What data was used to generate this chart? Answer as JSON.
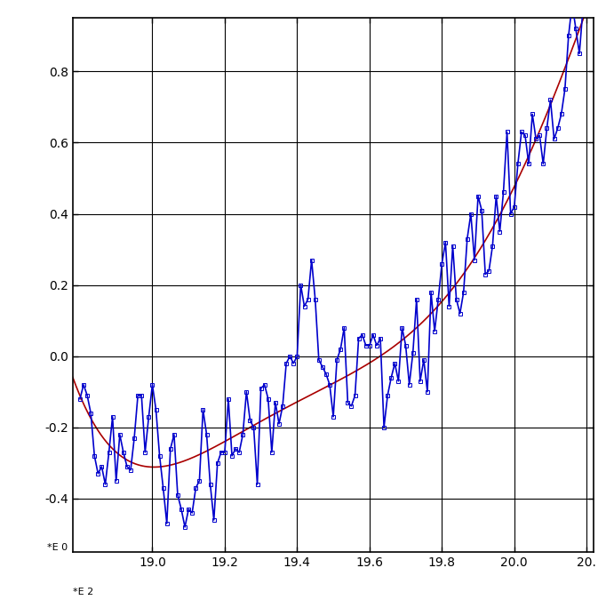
{
  "xlim_years": [
    1878,
    2022
  ],
  "ylim": [
    -0.55,
    0.95
  ],
  "yticks": [
    -0.4,
    -0.2,
    0.0,
    0.2,
    0.4,
    0.6,
    0.8
  ],
  "xtick_years": [
    1900,
    1920,
    1940,
    1960,
    1980,
    2000,
    2020
  ],
  "xtick_labels": [
    "19.0",
    "19.2",
    "19.4",
    "19.6",
    "19.8",
    "20.0",
    "20."
  ],
  "first_xlabel": "*E 2",
  "ylabel_note": "*E 0",
  "line_color": "#0000CC",
  "marker": "s",
  "marker_size": 3.5,
  "fit_color": "#AA0000",
  "fit_linewidth": 1.2,
  "data_linewidth": 1.2,
  "background_color": "#FFFFFF",
  "grid_color": "#000000",
  "poly_degree": 5,
  "years": [
    1880,
    1881,
    1882,
    1883,
    1884,
    1885,
    1886,
    1887,
    1888,
    1889,
    1890,
    1891,
    1892,
    1893,
    1894,
    1895,
    1896,
    1897,
    1898,
    1899,
    1900,
    1901,
    1902,
    1903,
    1904,
    1905,
    1906,
    1907,
    1908,
    1909,
    1910,
    1911,
    1912,
    1913,
    1914,
    1915,
    1916,
    1917,
    1918,
    1919,
    1920,
    1921,
    1922,
    1923,
    1924,
    1925,
    1926,
    1927,
    1928,
    1929,
    1930,
    1931,
    1932,
    1933,
    1934,
    1935,
    1936,
    1937,
    1938,
    1939,
    1940,
    1941,
    1942,
    1943,
    1944,
    1945,
    1946,
    1947,
    1948,
    1949,
    1950,
    1951,
    1952,
    1953,
    1954,
    1955,
    1956,
    1957,
    1958,
    1959,
    1960,
    1961,
    1962,
    1963,
    1964,
    1965,
    1966,
    1967,
    1968,
    1969,
    1970,
    1971,
    1972,
    1973,
    1974,
    1975,
    1976,
    1977,
    1978,
    1979,
    1980,
    1981,
    1982,
    1983,
    1984,
    1985,
    1986,
    1987,
    1988,
    1989,
    1990,
    1991,
    1992,
    1993,
    1994,
    1995,
    1996,
    1997,
    1998,
    1999,
    2000,
    2001,
    2002,
    2003,
    2004,
    2005,
    2006,
    2007,
    2008,
    2009,
    2010,
    2011,
    2012,
    2013,
    2014,
    2015,
    2016,
    2017,
    2018,
    2019,
    2020
  ],
  "anomalies": [
    -0.12,
    -0.08,
    -0.11,
    -0.16,
    -0.28,
    -0.33,
    -0.31,
    -0.36,
    -0.27,
    -0.17,
    -0.35,
    -0.22,
    -0.27,
    -0.31,
    -0.32,
    -0.23,
    -0.11,
    -0.11,
    -0.27,
    -0.17,
    -0.08,
    -0.15,
    -0.28,
    -0.37,
    -0.47,
    -0.26,
    -0.22,
    -0.39,
    -0.43,
    -0.48,
    -0.43,
    -0.44,
    -0.37,
    -0.35,
    -0.15,
    -0.22,
    -0.36,
    -0.46,
    -0.3,
    -0.27,
    -0.27,
    -0.12,
    -0.28,
    -0.26,
    -0.27,
    -0.22,
    -0.1,
    -0.18,
    -0.2,
    -0.36,
    -0.09,
    -0.08,
    -0.12,
    -0.27,
    -0.13,
    -0.19,
    -0.14,
    -0.02,
    -0.0,
    -0.02,
    0.0,
    0.2,
    0.14,
    0.16,
    0.27,
    0.16,
    -0.01,
    -0.03,
    -0.05,
    -0.08,
    -0.17,
    -0.01,
    0.02,
    0.08,
    -0.13,
    -0.14,
    -0.11,
    0.05,
    0.06,
    0.03,
    0.03,
    0.06,
    0.03,
    0.05,
    -0.2,
    -0.11,
    -0.06,
    -0.02,
    -0.07,
    0.08,
    0.03,
    -0.08,
    0.01,
    0.16,
    -0.07,
    -0.01,
    -0.1,
    0.18,
    0.07,
    0.16,
    0.26,
    0.32,
    0.14,
    0.31,
    0.16,
    0.12,
    0.18,
    0.33,
    0.4,
    0.27,
    0.45,
    0.41,
    0.23,
    0.24,
    0.31,
    0.45,
    0.35,
    0.46,
    0.63,
    0.4,
    0.42,
    0.54,
    0.63,
    0.62,
    0.54,
    0.68,
    0.61,
    0.62,
    0.54,
    0.64,
    0.72,
    0.61,
    0.64,
    0.68,
    0.75,
    0.9,
    0.99,
    0.92,
    0.85,
    0.98,
    1.02
  ]
}
